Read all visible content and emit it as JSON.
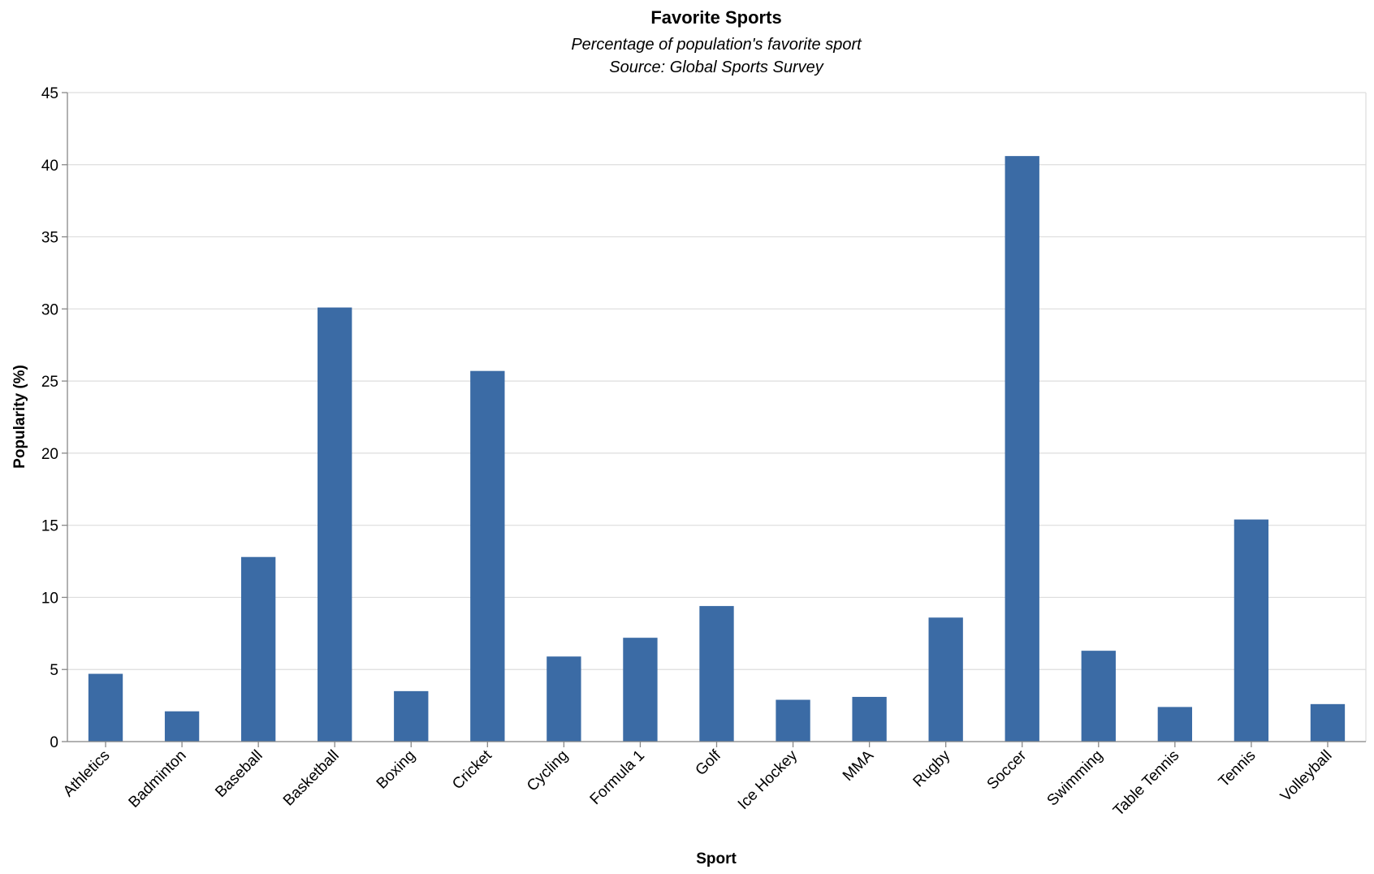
{
  "chart_data": {
    "type": "bar",
    "title": "Favorite Sports",
    "subtitle": [
      "Percentage of population's favorite sport",
      "Source: Global Sports Survey"
    ],
    "xlabel": "Sport",
    "ylabel": "Popularity (%)",
    "ylim": [
      0,
      45
    ],
    "yticks": [
      0,
      5,
      10,
      15,
      20,
      25,
      30,
      35,
      40,
      45
    ],
    "grid": true,
    "bar_color": "#3b6ba5",
    "categories": [
      "Athletics",
      "Badminton",
      "Baseball",
      "Basketball",
      "Boxing",
      "Cricket",
      "Cycling",
      "Formula 1",
      "Golf",
      "Ice Hockey",
      "MMA",
      "Rugby",
      "Soccer",
      "Swimming",
      "Table Tennis",
      "Tennis",
      "Volleyball"
    ],
    "values": [
      4.7,
      2.1,
      12.8,
      30.1,
      3.5,
      25.7,
      5.9,
      7.2,
      9.4,
      2.9,
      3.1,
      8.6,
      40.6,
      6.3,
      2.4,
      15.4,
      2.6
    ]
  }
}
